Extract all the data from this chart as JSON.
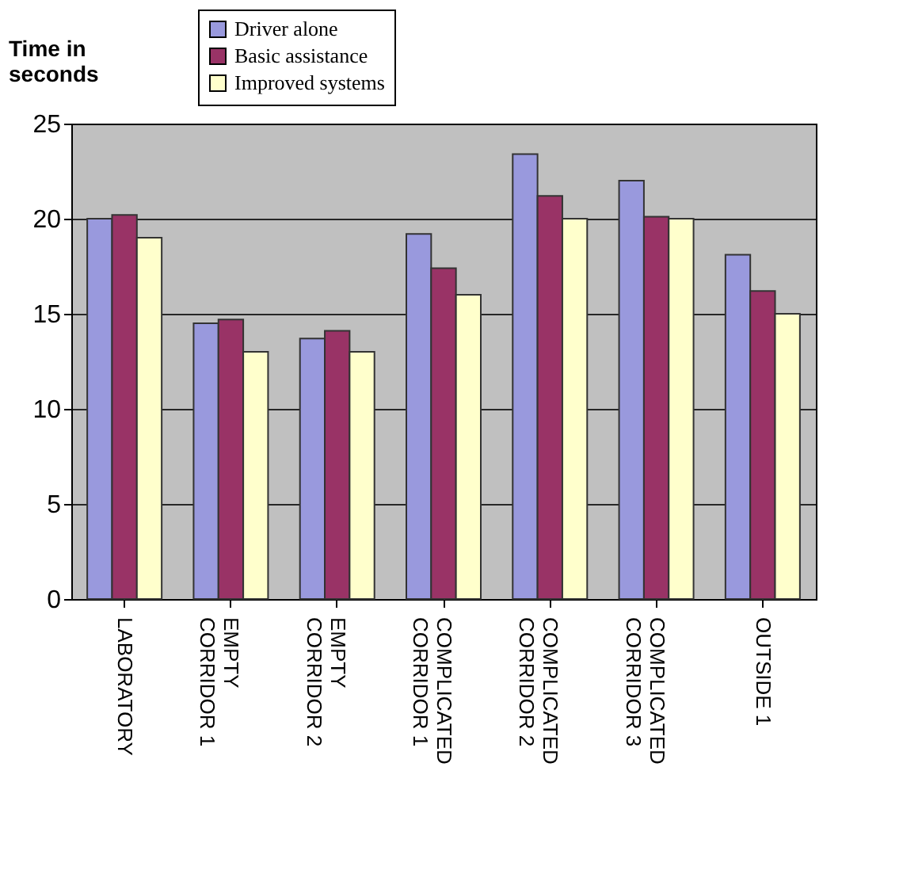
{
  "chart_data": {
    "type": "bar",
    "ylabel": "Time in seconds",
    "categories": [
      "LABORATORY",
      "EMPTY CORRIDOR 1",
      "EMPTY CORRIDOR 2",
      "COMPLICATED CORRIDOR 1",
      "COMPLICATED CORRIDOR 2",
      "COMPLICATED CORRIDOR 3",
      "OUTSIDE 1"
    ],
    "series": [
      {
        "name": "Driver alone",
        "color": "#9999dd",
        "values": [
          20,
          14.5,
          13.7,
          19.2,
          23.4,
          22,
          18.1
        ]
      },
      {
        "name": "Basic assistance",
        "color": "#993366",
        "values": [
          20.2,
          14.7,
          14.1,
          17.4,
          21.2,
          20.1,
          16.2
        ]
      },
      {
        "name": "Improved systems",
        "color": "#ffffcc",
        "values": [
          19,
          13,
          13,
          16,
          20,
          20,
          15
        ]
      }
    ],
    "ylim": [
      0,
      25
    ],
    "yticks": [
      0,
      5,
      10,
      15,
      20,
      25
    ],
    "grid": "y",
    "legend": "top"
  }
}
